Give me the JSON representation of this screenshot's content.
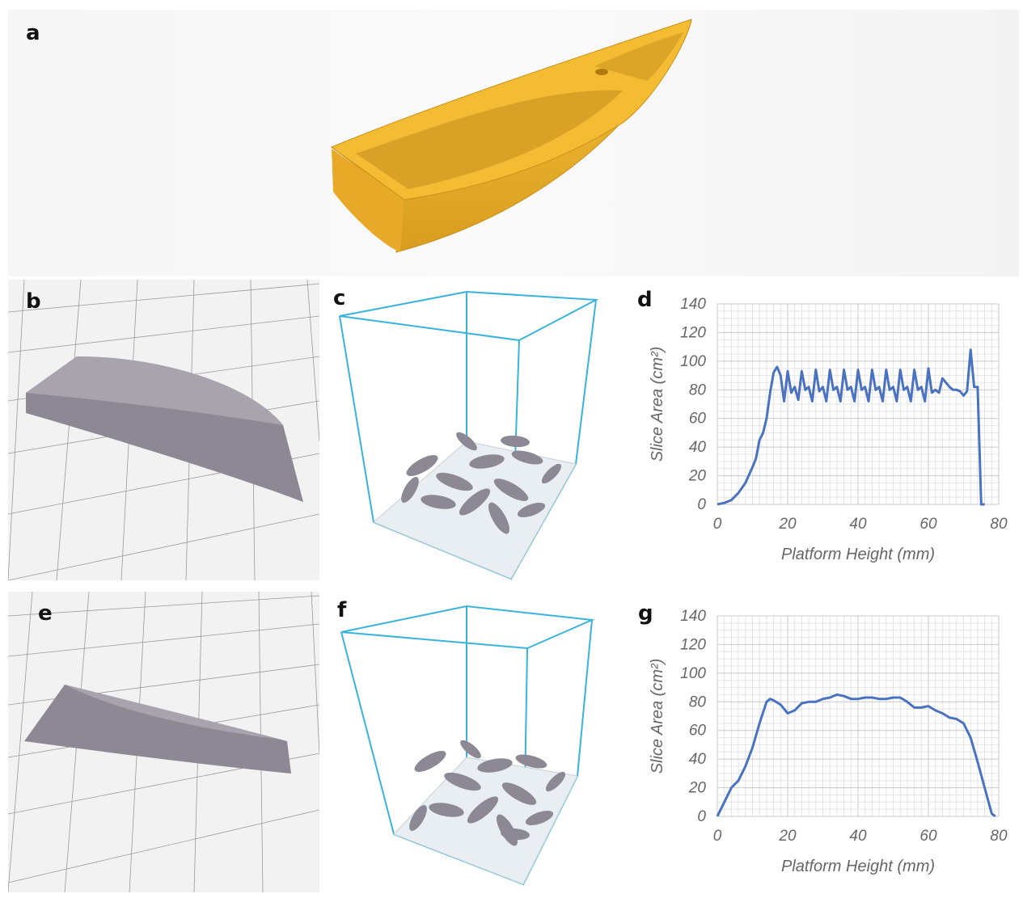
{
  "panels": {
    "a": "a",
    "b": "b",
    "c": "c",
    "d": "d",
    "e": "e",
    "f": "f",
    "g": "g"
  },
  "colors": {
    "boat_yellow": "#f2b92f",
    "part_grey": "#8c8994",
    "box_blue": "#39b3dc",
    "line_blue": "#4a72c0",
    "grid": "#d6d6d6"
  },
  "chart_data": [
    {
      "type": "line",
      "panel": "d",
      "xlabel": "Platform Height (mm)",
      "ylabel": "Slice Area (cm²)",
      "xlim": [
        0,
        80
      ],
      "ylim": [
        0,
        140
      ],
      "xticks": [
        0,
        20,
        40,
        60,
        80
      ],
      "yticks": [
        0,
        20,
        40,
        60,
        80,
        100,
        120,
        140
      ],
      "grid": true,
      "x": [
        0,
        2,
        4,
        6,
        8,
        10,
        11,
        12,
        13,
        14,
        15,
        16,
        17,
        18,
        19,
        20,
        21,
        22,
        23,
        24,
        25,
        26,
        27,
        28,
        29,
        30,
        31,
        32,
        33,
        34,
        35,
        36,
        37,
        38,
        39,
        40,
        41,
        42,
        43,
        44,
        45,
        46,
        47,
        48,
        49,
        50,
        51,
        52,
        53,
        54,
        55,
        56,
        57,
        58,
        59,
        60,
        61,
        62,
        63,
        64,
        65,
        66,
        67,
        68,
        69,
        70,
        71,
        72,
        73,
        74,
        75,
        76
      ],
      "y": [
        0,
        1,
        3,
        8,
        15,
        26,
        32,
        45,
        50,
        60,
        78,
        92,
        96,
        90,
        72,
        93,
        78,
        82,
        73,
        93,
        80,
        82,
        72,
        94,
        79,
        82,
        72,
        94,
        80,
        82,
        72,
        94,
        80,
        82,
        72,
        94,
        80,
        82,
        72,
        94,
        80,
        82,
        72,
        94,
        80,
        82,
        72,
        94,
        80,
        82,
        72,
        94,
        80,
        82,
        72,
        95,
        78,
        80,
        78,
        88,
        85,
        82,
        80,
        80,
        79,
        76,
        79,
        108,
        82,
        82,
        0,
        0
      ],
      "series_color": "#4a72c0"
    },
    {
      "type": "line",
      "panel": "g",
      "xlabel": "Platform Height (mm)",
      "ylabel": "Slice Area (cm²)",
      "xlim": [
        0,
        80
      ],
      "ylim": [
        0,
        140
      ],
      "xticks": [
        0,
        20,
        40,
        60,
        80
      ],
      "yticks": [
        0,
        20,
        40,
        60,
        80,
        100,
        120,
        140
      ],
      "grid": true,
      "x": [
        0,
        2,
        4,
        6,
        8,
        10,
        12,
        14,
        15,
        16,
        18,
        20,
        22,
        24,
        26,
        28,
        30,
        32,
        34,
        36,
        38,
        40,
        42,
        44,
        46,
        48,
        50,
        52,
        54,
        56,
        58,
        60,
        62,
        64,
        66,
        68,
        70,
        72,
        74,
        76,
        78,
        79
      ],
      "y": [
        0,
        10,
        20,
        25,
        35,
        48,
        65,
        80,
        82,
        81,
        78,
        72,
        74,
        79,
        80,
        80,
        82,
        83,
        85,
        84,
        82,
        82,
        83,
        83,
        82,
        82,
        83,
        83,
        80,
        76,
        76,
        77,
        74,
        72,
        69,
        68,
        65,
        55,
        38,
        20,
        2,
        0
      ],
      "series_color": "#4a72c0"
    }
  ]
}
